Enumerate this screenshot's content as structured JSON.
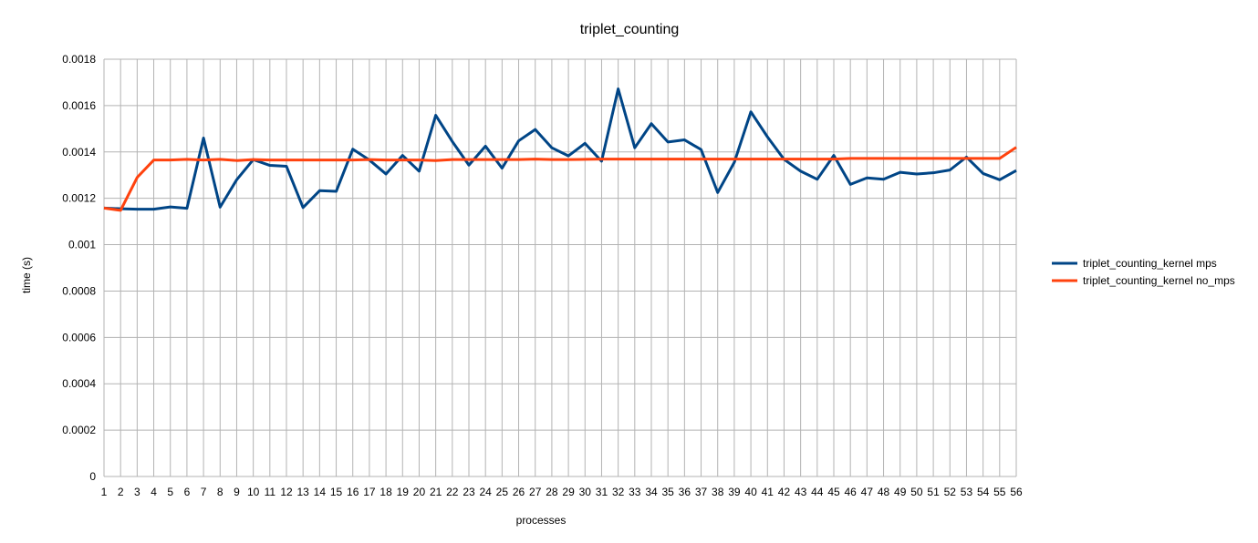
{
  "chart_data": {
    "type": "line",
    "title": "triplet_counting",
    "xlabel": "processes",
    "ylabel": "time (s)",
    "x": [
      1,
      2,
      3,
      4,
      5,
      6,
      7,
      8,
      9,
      10,
      11,
      12,
      13,
      14,
      15,
      16,
      17,
      18,
      19,
      20,
      21,
      22,
      23,
      24,
      25,
      26,
      27,
      28,
      29,
      30,
      31,
      32,
      33,
      34,
      35,
      36,
      37,
      38,
      39,
      40,
      41,
      42,
      43,
      44,
      45,
      46,
      47,
      48,
      49,
      50,
      51,
      52,
      53,
      54,
      55,
      56
    ],
    "ylim": [
      0,
      0.0018
    ],
    "yticks": [
      0,
      0.0002,
      0.0004,
      0.0006,
      0.0008,
      0.001,
      0.0012,
      0.0014,
      0.0016,
      0.0018
    ],
    "ytick_labels": [
      "0",
      "0.0002",
      "0.0004",
      "0.0006",
      "0.0008",
      "0.001",
      "0.0012",
      "0.0014",
      "0.0016",
      "0.0018"
    ],
    "grid": true,
    "legend_position": "right",
    "series": [
      {
        "name": "triplet_counting_kernel mps",
        "color": "#004586",
        "values": [
          0.001158,
          0.001155,
          0.001153,
          0.001153,
          0.001163,
          0.001157,
          0.00146,
          0.001162,
          0.00128,
          0.001367,
          0.001342,
          0.001338,
          0.00116,
          0.001233,
          0.00123,
          0.001412,
          0.001365,
          0.001305,
          0.001385,
          0.001317,
          0.001558,
          0.001445,
          0.001343,
          0.001425,
          0.00133,
          0.001448,
          0.001497,
          0.001418,
          0.001383,
          0.001437,
          0.00136,
          0.001672,
          0.001418,
          0.001522,
          0.001443,
          0.001452,
          0.00141,
          0.001225,
          0.001355,
          0.001573,
          0.001465,
          0.001368,
          0.001317,
          0.001282,
          0.001385,
          0.00126,
          0.001288,
          0.001282,
          0.001312,
          0.001305,
          0.00131,
          0.001322,
          0.001378,
          0.001307,
          0.00128,
          0.00132
        ]
      },
      {
        "name": "triplet_counting_kernel no_mps",
        "color": "#ff420e",
        "values": [
          0.001158,
          0.001148,
          0.00129,
          0.001365,
          0.001365,
          0.001368,
          0.001365,
          0.001368,
          0.001363,
          0.001367,
          0.001365,
          0.001365,
          0.001365,
          0.001365,
          0.001365,
          0.001365,
          0.001367,
          0.001365,
          0.001365,
          0.001365,
          0.001363,
          0.001367,
          0.001367,
          0.001367,
          0.001367,
          0.001367,
          0.001369,
          0.001367,
          0.001367,
          0.001368,
          0.001369,
          0.001369,
          0.001369,
          0.001369,
          0.001369,
          0.001369,
          0.001369,
          0.001369,
          0.001369,
          0.001369,
          0.001369,
          0.001369,
          0.001369,
          0.001369,
          0.001369,
          0.001372,
          0.001372,
          0.001372,
          0.001372,
          0.001372,
          0.001372,
          0.001372,
          0.001372,
          0.001372,
          0.001372,
          0.00142
        ]
      }
    ]
  }
}
